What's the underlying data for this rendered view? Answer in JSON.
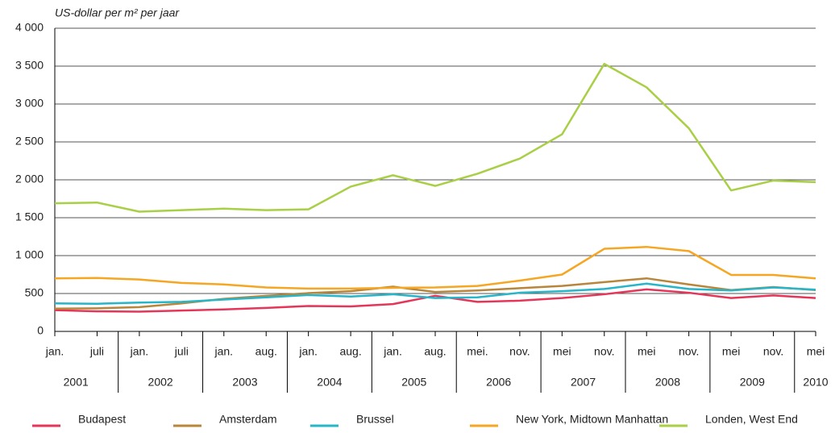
{
  "chart_data": {
    "type": "line",
    "y_label": "US-dollar per m² per jaar",
    "groups": [
      {
        "name": "2001",
        "categories": [
          "jan.",
          "juli"
        ]
      },
      {
        "name": "2002",
        "categories": [
          "jan.",
          "juli"
        ]
      },
      {
        "name": "2003",
        "categories": [
          "jan.",
          "aug."
        ]
      },
      {
        "name": "2004",
        "categories": [
          "jan.",
          "aug."
        ]
      },
      {
        "name": "2005",
        "categories": [
          "jan.",
          "aug."
        ]
      },
      {
        "name": "2006",
        "categories": [
          "mei.",
          "nov."
        ]
      },
      {
        "name": "2007",
        "categories": [
          "mei",
          "nov."
        ]
      },
      {
        "name": "2008",
        "categories": [
          "mei",
          "nov."
        ]
      },
      {
        "name": "2009",
        "categories": [
          "mei",
          "nov."
        ]
      },
      {
        "name": "2010",
        "categories": [
          "mei"
        ]
      }
    ],
    "series": [
      {
        "name": "Budapest",
        "color": "#e5365a",
        "values": [
          280,
          265,
          260,
          275,
          290,
          310,
          335,
          330,
          360,
          470,
          390,
          405,
          440,
          490,
          555,
          510,
          440,
          475,
          440
        ]
      },
      {
        "name": "Amsterdam",
        "color": "#b8863b",
        "values": [
          300,
          305,
          320,
          370,
          430,
          470,
          505,
          530,
          590,
          520,
          540,
          570,
          600,
          650,
          700,
          620,
          545,
          585,
          545
        ]
      },
      {
        "name": "Brussel",
        "color": "#26b5c9",
        "values": [
          370,
          365,
          380,
          390,
          420,
          450,
          480,
          460,
          490,
          440,
          450,
          510,
          530,
          560,
          630,
          560,
          540,
          580,
          550
        ]
      },
      {
        "name": "New York, Midtown Manhattan",
        "color": "#f5a623",
        "values": [
          700,
          705,
          685,
          640,
          620,
          580,
          565,
          565,
          575,
          580,
          600,
          670,
          750,
          1090,
          1115,
          1060,
          745,
          745,
          700
        ]
      },
      {
        "name": "Londen, West End",
        "color": "#a8cf45",
        "values": [
          1690,
          1700,
          1580,
          1600,
          1620,
          1600,
          1610,
          1910,
          2060,
          1920,
          2080,
          2280,
          2600,
          3530,
          3220,
          2680,
          1860,
          1990,
          1970
        ]
      }
    ],
    "ylim": [
      0,
      4000
    ],
    "yticks": [
      0,
      500,
      {
        "value": 1000,
        "label": "1 000"
      },
      {
        "value": 1500,
        "label": "1 500"
      },
      {
        "value": 2000,
        "label": "2 000"
      },
      {
        "value": 2500,
        "label": "2 500"
      },
      {
        "value": 3000,
        "label": "3 000"
      },
      {
        "value": 3500,
        "label": "3 500"
      },
      {
        "value": 4000,
        "label": "4 000"
      }
    ],
    "grid": true,
    "legend": "bottom"
  }
}
